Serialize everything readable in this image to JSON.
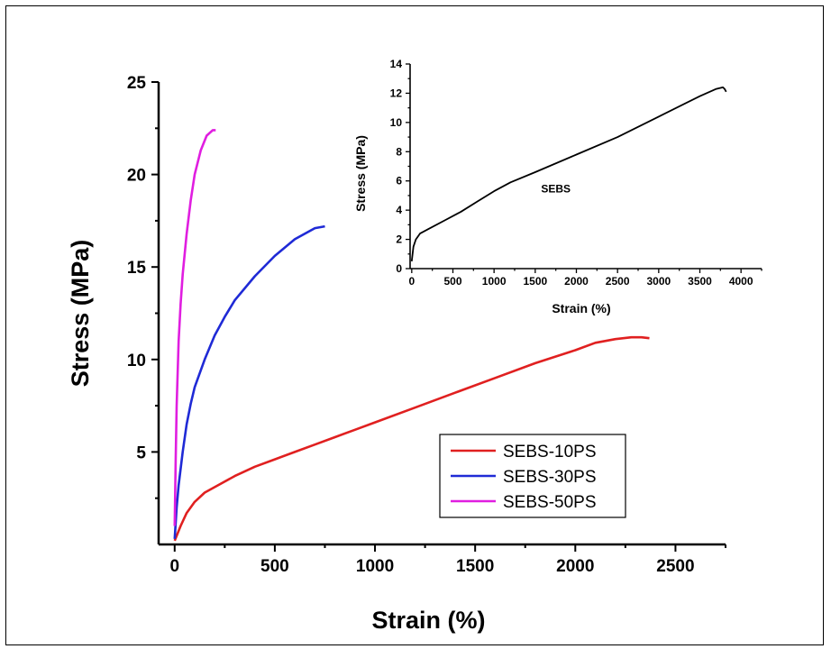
{
  "chart_data": [
    {
      "type": "line",
      "xlabel": "Strain (%)",
      "ylabel": "Stress (MPa)",
      "xlim": [
        -80,
        2750
      ],
      "ylim": [
        0,
        25
      ],
      "xticks": [
        0,
        500,
        1000,
        1500,
        2000,
        2500
      ],
      "yticks": [
        5,
        10,
        15,
        20,
        25
      ],
      "legend_position": "lower-right",
      "series": [
        {
          "name": "SEBS-10PS",
          "color": "#e02020",
          "x": [
            0,
            30,
            60,
            100,
            150,
            200,
            300,
            400,
            500,
            600,
            700,
            800,
            900,
            1000,
            1200,
            1400,
            1600,
            1800,
            2000,
            2100,
            2200,
            2280,
            2330,
            2370
          ],
          "y": [
            0.2,
            1.0,
            1.7,
            2.3,
            2.8,
            3.1,
            3.7,
            4.2,
            4.6,
            5.0,
            5.4,
            5.8,
            6.2,
            6.6,
            7.4,
            8.2,
            9.0,
            9.8,
            10.5,
            10.9,
            11.1,
            11.2,
            11.2,
            11.15
          ]
        },
        {
          "name": "SEBS-30PS",
          "color": "#1f2ad6",
          "x": [
            0,
            10,
            20,
            40,
            60,
            80,
            100,
            150,
            200,
            250,
            300,
            400,
            500,
            600,
            700,
            750
          ],
          "y": [
            0.3,
            2.0,
            3.2,
            5.0,
            6.5,
            7.6,
            8.5,
            10.0,
            11.3,
            12.3,
            13.2,
            14.5,
            15.6,
            16.5,
            17.1,
            17.2
          ]
        },
        {
          "name": "SEBS-50PS",
          "color": "#e01ee0",
          "x": [
            0,
            5,
            10,
            20,
            30,
            40,
            60,
            80,
            100,
            130,
            160,
            190,
            205
          ],
          "y": [
            1.0,
            4.5,
            7.5,
            11.0,
            13.0,
            14.6,
            16.8,
            18.6,
            20.0,
            21.3,
            22.1,
            22.4,
            22.4
          ]
        }
      ]
    },
    {
      "type": "line",
      "xlabel": "Strain (%)",
      "ylabel": "Stress (MPa)",
      "xlim": [
        -20,
        4250
      ],
      "ylim": [
        0,
        14
      ],
      "xticks": [
        0,
        500,
        1000,
        1500,
        2000,
        2500,
        3000,
        3500,
        4000
      ],
      "yticks": [
        0,
        2,
        4,
        6,
        8,
        10,
        12,
        14
      ],
      "annotation": "SEBS",
      "series": [
        {
          "color": "#000000",
          "x": [
            0,
            20,
            50,
            100,
            200,
            400,
            600,
            800,
            1000,
            1200,
            1500,
            2000,
            2500,
            3000,
            3500,
            3700,
            3780,
            3800,
            3820
          ],
          "y": [
            0.5,
            1.5,
            2.0,
            2.4,
            2.7,
            3.3,
            3.9,
            4.6,
            5.3,
            5.9,
            6.6,
            7.8,
            9.0,
            10.4,
            11.8,
            12.3,
            12.4,
            12.3,
            12.1
          ]
        }
      ]
    }
  ]
}
